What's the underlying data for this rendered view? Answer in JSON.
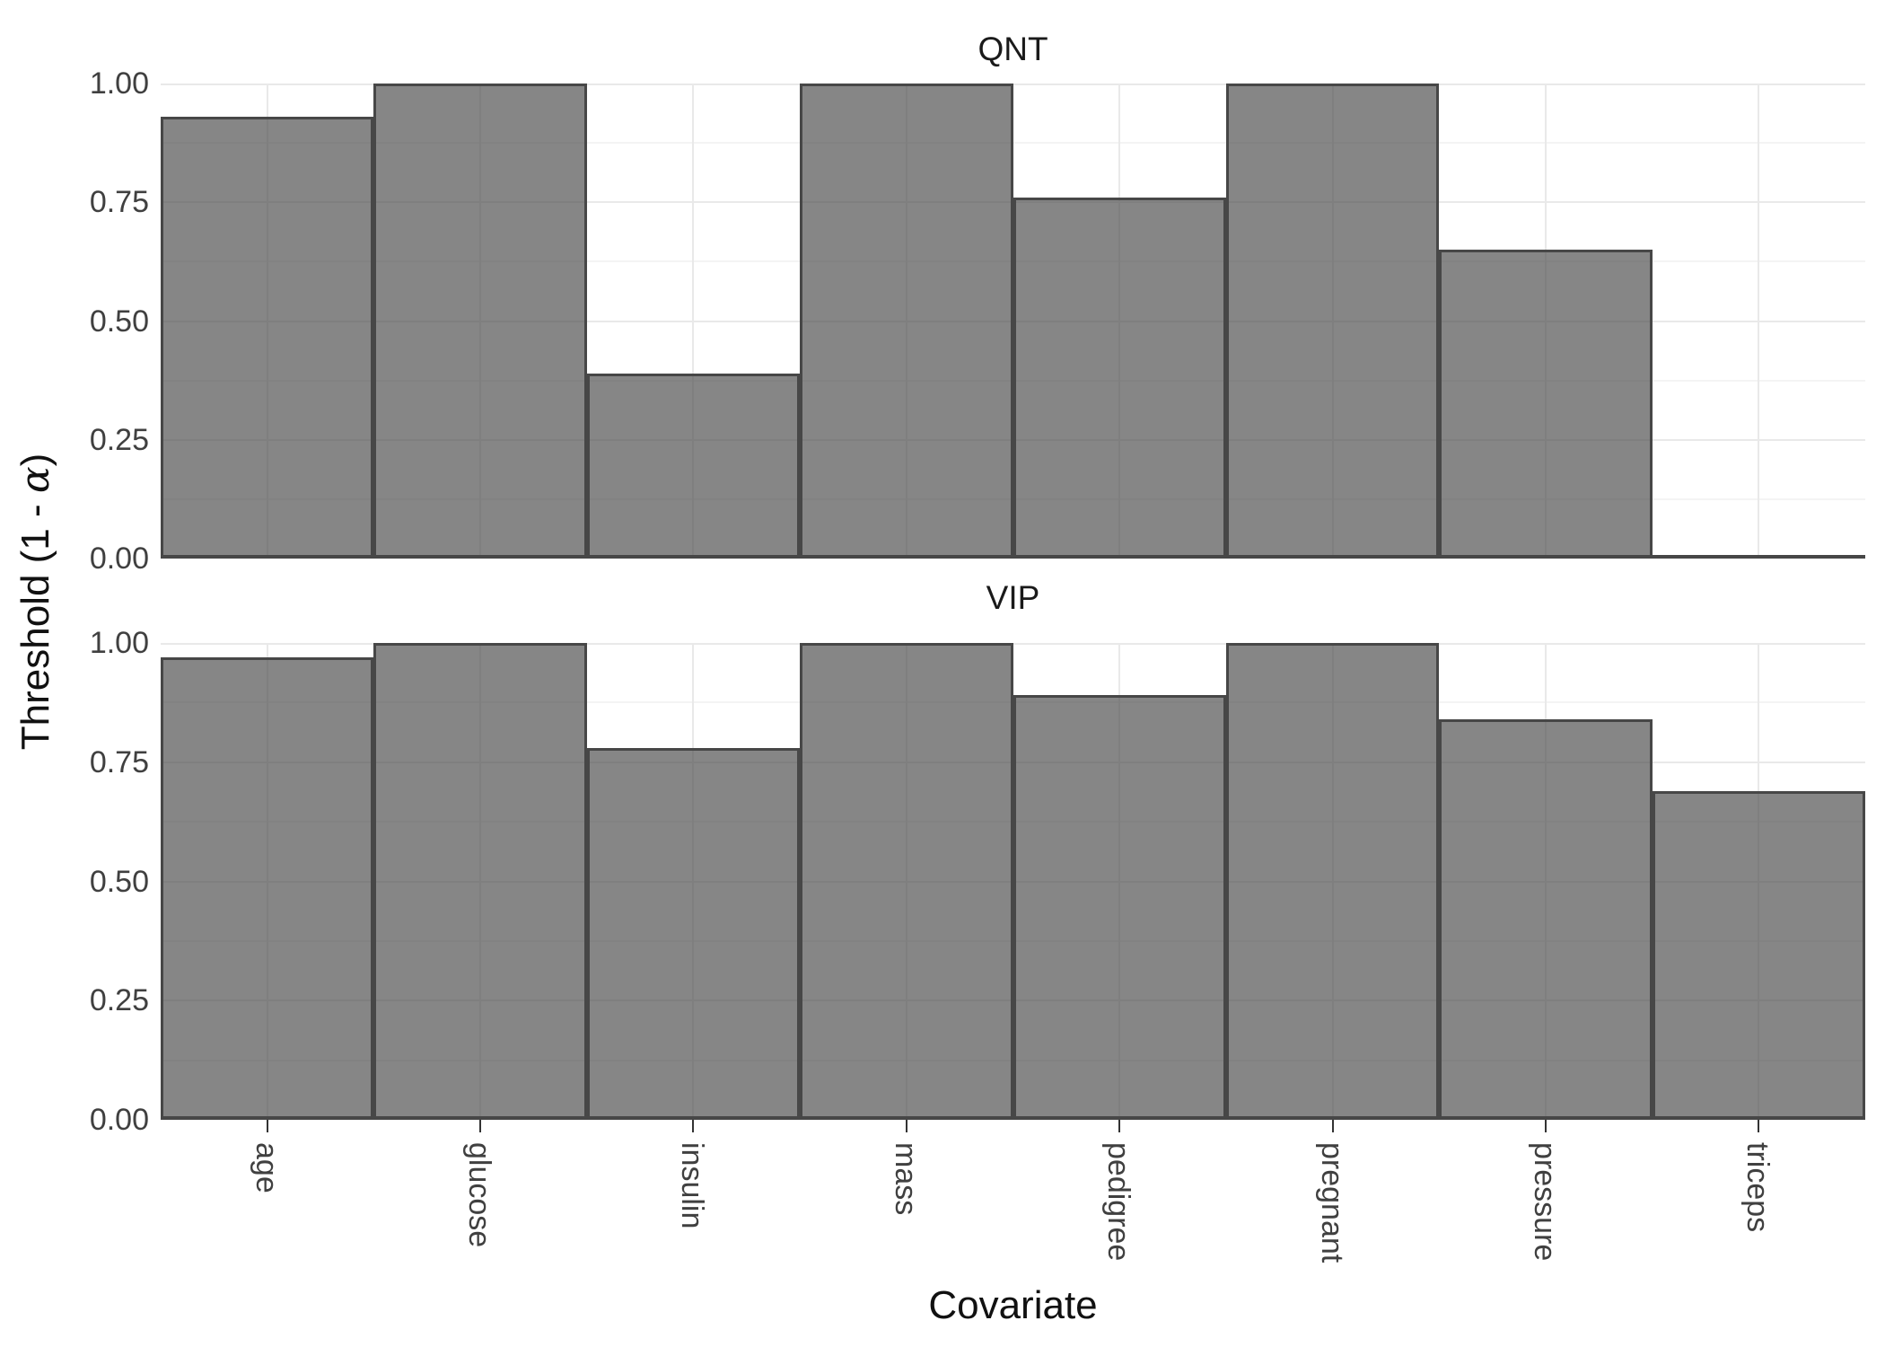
{
  "chart_data": {
    "type": "bar",
    "title": "",
    "xlabel": "Covariate",
    "ylabel": "Threshold (1 - α)",
    "ylabel_parts": {
      "prefix": "Threshold (1 - ",
      "alpha": "α",
      "suffix": ")"
    },
    "categories": [
      "age",
      "glucose",
      "insulin",
      "mass",
      "pedigree",
      "pregnant",
      "pressure",
      "triceps"
    ],
    "facets": [
      {
        "label": "QNT",
        "values": [
          0.93,
          1.0,
          0.39,
          1.0,
          0.76,
          1.0,
          0.65,
          0.0
        ]
      },
      {
        "label": "VIP",
        "values": [
          0.97,
          1.0,
          0.78,
          1.0,
          0.89,
          1.0,
          0.84,
          0.69
        ]
      }
    ],
    "ylim": [
      0,
      1
    ],
    "y_ticks": [
      "1.00",
      "0.75",
      "0.50",
      "0.25",
      "0.00"
    ],
    "y_tick_values": [
      1.0,
      0.75,
      0.5,
      0.25,
      0.0
    ],
    "y_minor_values": [
      0.875,
      0.625,
      0.375,
      0.125
    ],
    "grid": true,
    "legend": "none",
    "bar_orientation": "vertical",
    "colors": {
      "bar_fill": "rgba(71,71,71,0.66)",
      "bar_border": "#474747",
      "grid_major": "#e9e9e9",
      "grid_minor": "#f4f4f4",
      "baseline": "#474747",
      "axis_text": "#404040",
      "title_text": "#111111",
      "background": "#ffffff"
    }
  }
}
